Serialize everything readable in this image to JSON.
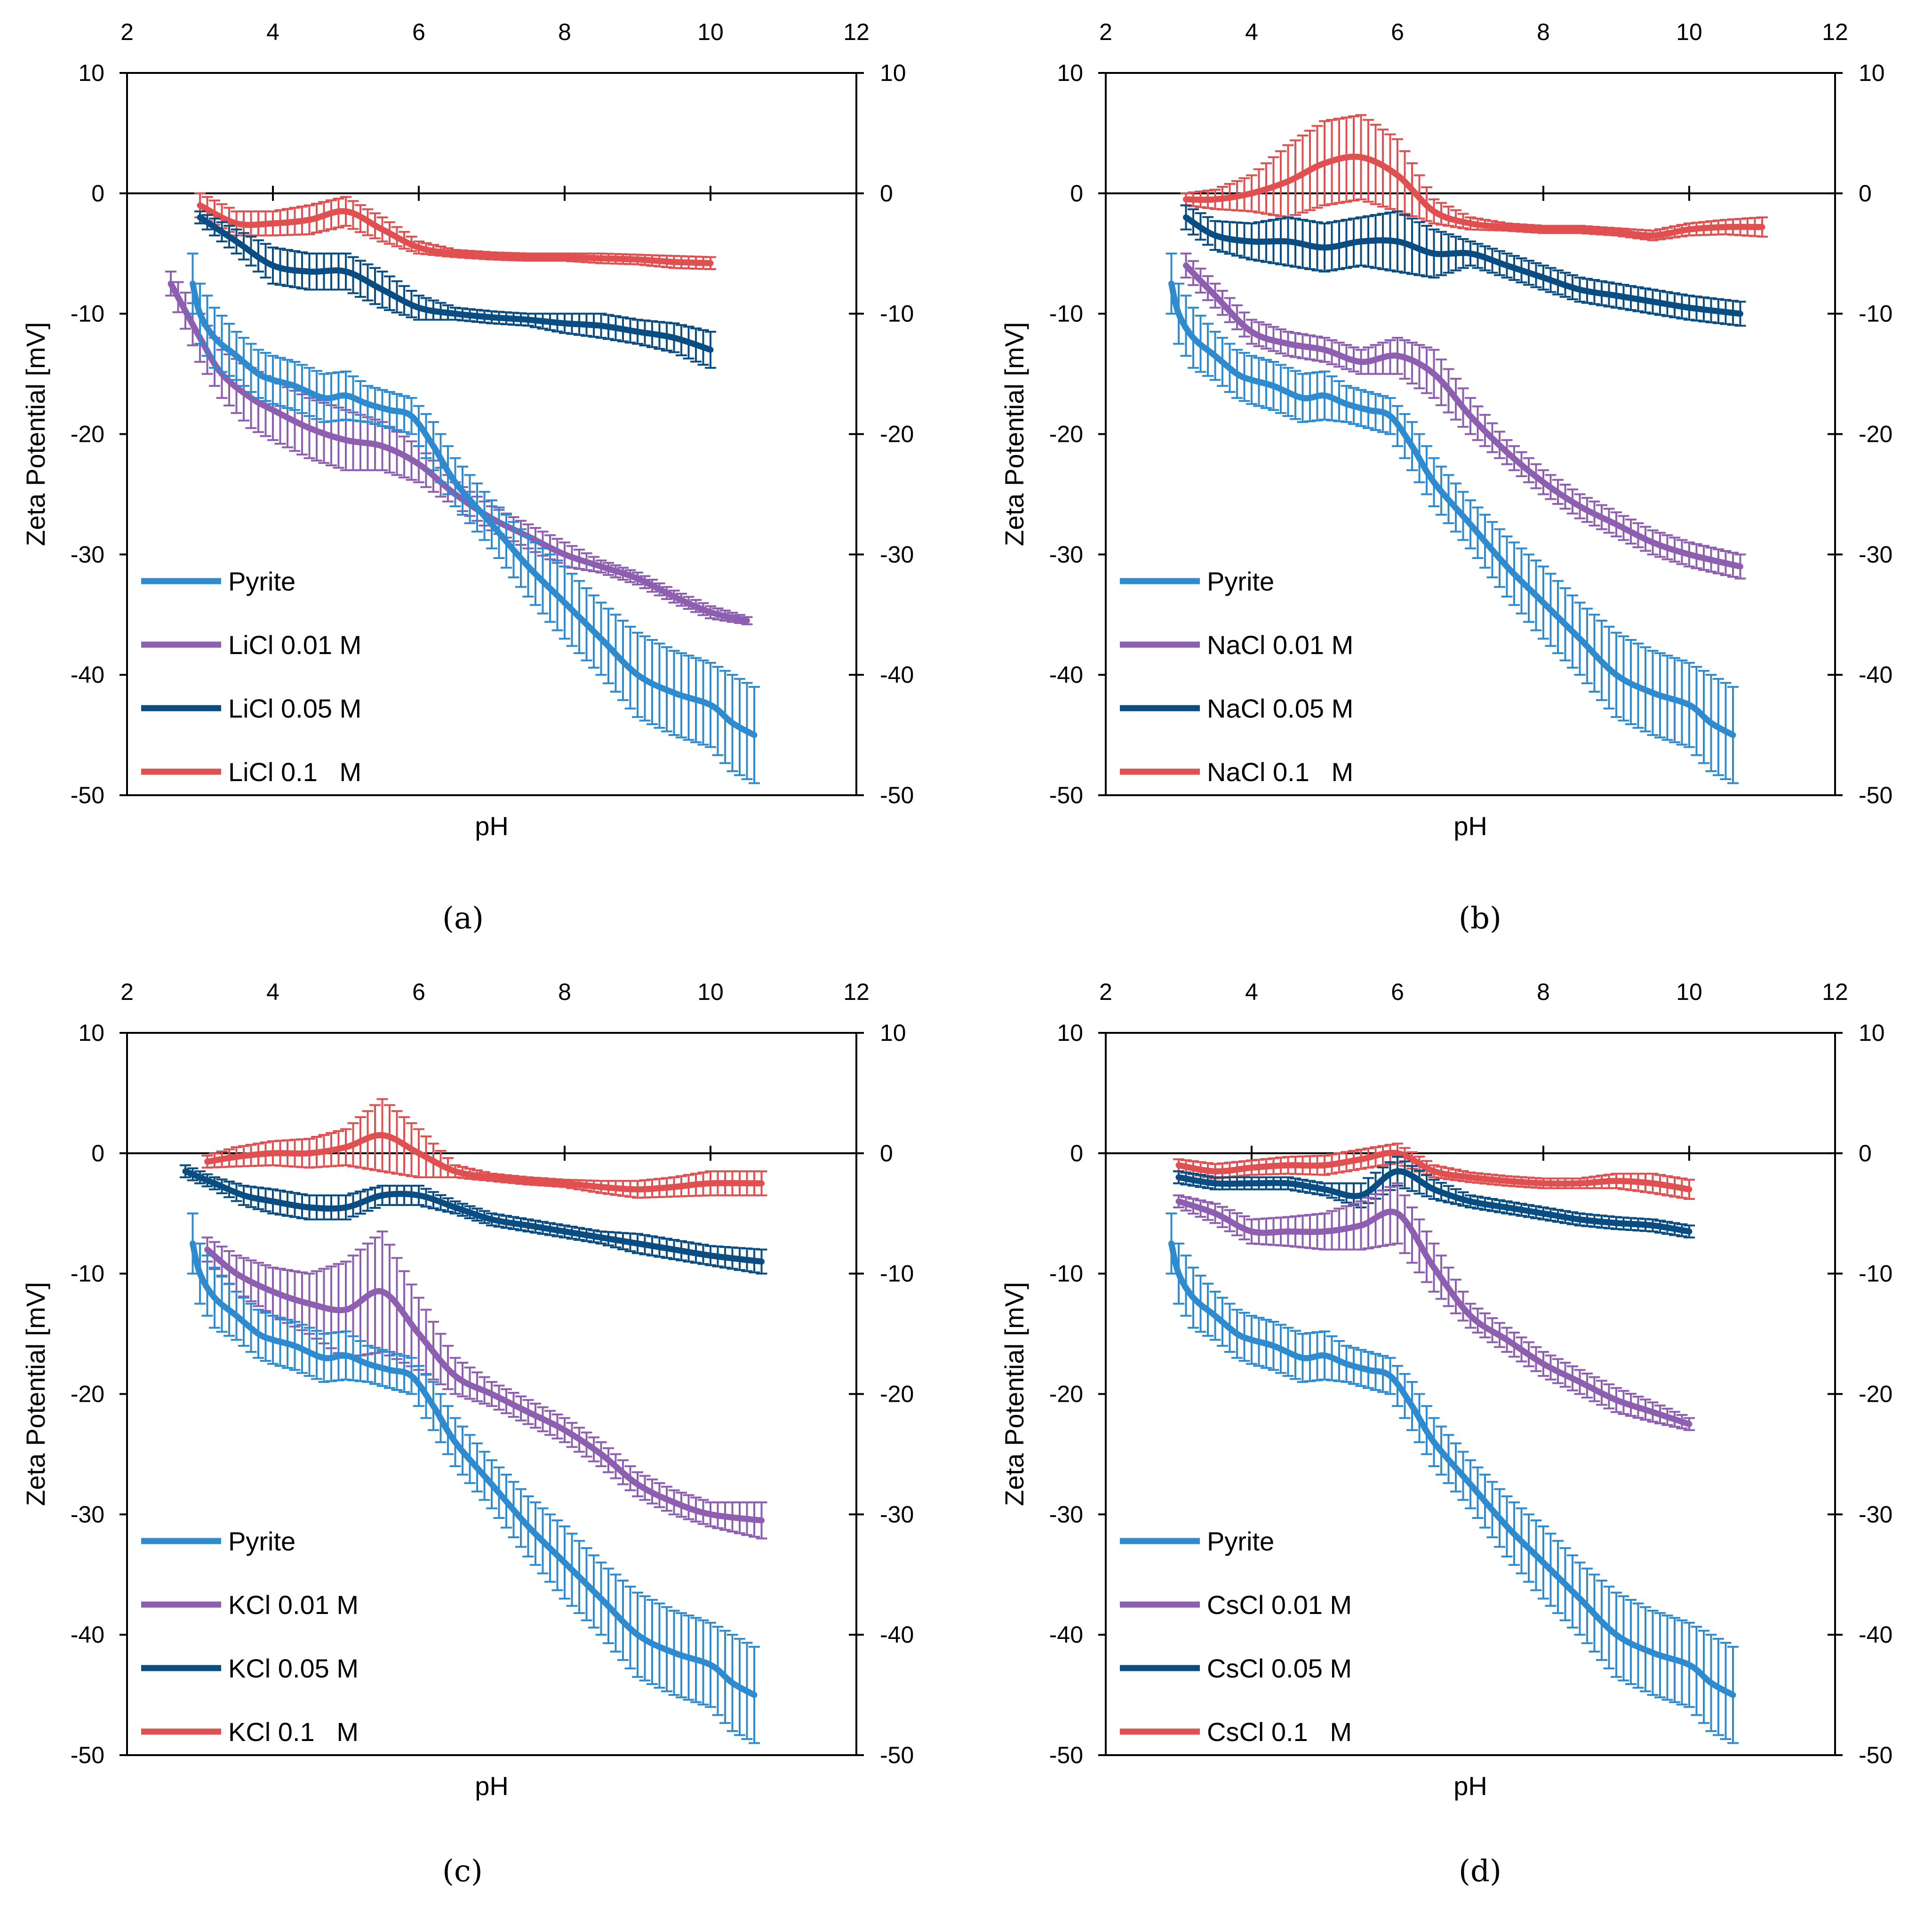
{
  "colors": {
    "pyrite": "#2e8bcf",
    "c001": "#8e5fb0",
    "c005": "#0a4d83",
    "c01": "#e05050"
  },
  "chart_data": [
    {
      "type": "line",
      "panel": "a",
      "caption": "(a)",
      "xlabel": "pH",
      "ylabel": "Zeta Potential [mV]",
      "xlim": [
        2,
        12
      ],
      "ylim": [
        -50,
        10
      ],
      "xticks": [
        "2",
        "4",
        "6",
        "8",
        "10",
        "12"
      ],
      "yticks": [
        "10",
        "0",
        "-10",
        "-20",
        "-30",
        "-40",
        "-50"
      ],
      "legend": [
        "Pyrite",
        "LiCl 0.01 M",
        "LiCl 0.05 M",
        "LiCl 0.1   M"
      ],
      "series": [
        {
          "name": "Pyrite",
          "color": "pyrite",
          "errorbars": true,
          "x": [
            2.9,
            3,
            3.2,
            3.5,
            3.8,
            4,
            4.3,
            4.7,
            5,
            5.3,
            5.6,
            5.9,
            6.2,
            6.5,
            7,
            7.5,
            8,
            8.5,
            9,
            9.5,
            10,
            10.3,
            10.6
          ],
          "y": [
            -7.5,
            -10,
            -12,
            -13.5,
            -15,
            -15.5,
            -16,
            -17,
            -16.8,
            -17.5,
            -18,
            -18.5,
            -21,
            -24,
            -27.5,
            -31,
            -34,
            -37,
            -40,
            -41.5,
            -42.5,
            -44,
            -45
          ],
          "err": [
            2.5,
            2.5,
            2.5,
            2,
            2,
            2,
            2,
            2,
            2,
            1.5,
            1.5,
            1.5,
            2,
            2,
            2,
            2.5,
            3,
            3,
            3.5,
            3.5,
            3.5,
            4,
            4
          ]
        },
        {
          "name": "LiCl 0.01 M",
          "color": "c001",
          "errorbars": true,
          "x": [
            2.6,
            3,
            3.3,
            3.7,
            4,
            4.5,
            5,
            5.5,
            6,
            6.5,
            7,
            7.5,
            8,
            8.5,
            9,
            9.5,
            10,
            10.5
          ],
          "y": [
            -7.5,
            -12,
            -15,
            -17,
            -18,
            -19.5,
            -20.5,
            -21,
            -22.5,
            -25,
            -27,
            -28.5,
            -30,
            -31,
            -32,
            -33.5,
            -34.8,
            -35.5
          ],
          "err": [
            1,
            2,
            2,
            2.5,
            2.5,
            2.5,
            2.5,
            2,
            1.5,
            1,
            1,
            1,
            1,
            0.5,
            0.5,
            0.5,
            0.5,
            0.3
          ]
        },
        {
          "name": "LiCl 0.05 M",
          "color": "c005",
          "errorbars": true,
          "x": [
            3,
            3.5,
            4,
            4.5,
            5,
            5.5,
            6,
            6.5,
            7,
            7.5,
            8,
            8.5,
            9,
            9.5,
            10
          ],
          "y": [
            -2,
            -4,
            -6,
            -6.5,
            -6.5,
            -8,
            -9.5,
            -10,
            -10.3,
            -10.5,
            -10.8,
            -11,
            -11.5,
            -12,
            -13
          ],
          "err": [
            0.5,
            1,
            1.5,
            1.5,
            1.5,
            1.5,
            1,
            0.5,
            0.5,
            0.5,
            0.8,
            1,
            1,
            1.2,
            1.5
          ]
        },
        {
          "name": "LiCl 0.1   M",
          "color": "c01",
          "errorbars": true,
          "x": [
            3,
            3.5,
            4,
            4.5,
            5,
            5.5,
            6,
            6.5,
            7,
            7.5,
            8,
            8.5,
            9,
            9.5,
            10
          ],
          "y": [
            -1,
            -2.5,
            -2.5,
            -2.2,
            -1.5,
            -3,
            -4.5,
            -5,
            -5.2,
            -5.3,
            -5.3,
            -5.4,
            -5.5,
            -5.7,
            -5.8
          ],
          "err": [
            1,
            1,
            1,
            1.2,
            1.2,
            1,
            0.5,
            0.3,
            0.3,
            0.3,
            0.3,
            0.4,
            0.4,
            0.5,
            0.5
          ]
        }
      ]
    },
    {
      "type": "line",
      "panel": "b",
      "caption": "(b)",
      "xlabel": "pH",
      "ylabel": "Zeta Potential [mV]",
      "xlim": [
        2,
        12
      ],
      "ylim": [
        -50,
        10
      ],
      "xticks": [
        "2",
        "4",
        "6",
        "8",
        "10",
        "12"
      ],
      "yticks": [
        "10",
        "0",
        "-10",
        "-20",
        "-30",
        "-40",
        "-50"
      ],
      "legend": [
        "Pyrite",
        "NaCl 0.01 M",
        "NaCl 0.05 M",
        "NaCl 0.1   M"
      ],
      "series": [
        {
          "name": "Pyrite",
          "color": "pyrite",
          "errorbars": true,
          "x": [
            2.9,
            3,
            3.2,
            3.5,
            3.8,
            4,
            4.3,
            4.7,
            5,
            5.3,
            5.6,
            5.9,
            6.2,
            6.5,
            7,
            7.5,
            8,
            8.5,
            9,
            9.5,
            10,
            10.3,
            10.6
          ],
          "y": [
            -7.5,
            -10,
            -12,
            -13.5,
            -15,
            -15.5,
            -16,
            -17,
            -16.8,
            -17.5,
            -18,
            -18.5,
            -21,
            -24,
            -27.5,
            -31,
            -34,
            -37,
            -40,
            -41.5,
            -42.5,
            -44,
            -45
          ],
          "err": [
            2.5,
            2.5,
            2.5,
            2,
            2,
            2,
            2,
            2,
            2,
            1.5,
            1.5,
            1.5,
            2,
            2,
            2,
            2.5,
            3,
            3,
            3.5,
            3.5,
            3.5,
            4,
            4
          ]
        },
        {
          "name": "NaCl 0.01 M",
          "color": "c001",
          "errorbars": true,
          "x": [
            3.1,
            3.5,
            4,
            4.5,
            5,
            5.5,
            6,
            6.5,
            7,
            7.5,
            8,
            8.5,
            9,
            9.5,
            10,
            10.7
          ],
          "y": [
            -6,
            -8.5,
            -11.5,
            -12.5,
            -13,
            -14,
            -13.5,
            -15,
            -18.5,
            -21.5,
            -24,
            -26,
            -27.5,
            -29,
            -30,
            -31
          ],
          "err": [
            1,
            1,
            1,
            1,
            1,
            1,
            1.5,
            2,
            1.5,
            1,
            1,
            1,
            1,
            1,
            1,
            1
          ]
        },
        {
          "name": "NaCl 0.05 M",
          "color": "c005",
          "errorbars": true,
          "x": [
            3.1,
            3.5,
            4,
            4.5,
            5,
            5.5,
            6,
            6.5,
            7,
            7.5,
            8,
            8.5,
            9,
            9.5,
            10,
            10.7
          ],
          "y": [
            -2,
            -3.5,
            -4,
            -4,
            -4.5,
            -4,
            -4,
            -5,
            -5,
            -6,
            -7,
            -8,
            -8.5,
            -9,
            -9.5,
            -10
          ],
          "err": [
            1,
            1.2,
            1.5,
            2,
            2,
            2,
            2.5,
            2,
            1,
            1,
            1,
            1,
            1,
            1,
            1,
            1
          ]
        },
        {
          "name": "NaCl 0.1   M",
          "color": "c01",
          "errorbars": true,
          "x": [
            3.1,
            3.5,
            4,
            4.5,
            5,
            5.5,
            6,
            6.5,
            7,
            7.5,
            8,
            8.5,
            9,
            9.5,
            10,
            10.5,
            11
          ],
          "y": [
            -0.5,
            -0.5,
            0,
            1,
            2.5,
            3,
            1.5,
            -1.5,
            -2.5,
            -2.8,
            -3,
            -3,
            -3.2,
            -3.5,
            -3,
            -2.8,
            -2.8
          ],
          "err": [
            0.5,
            0.8,
            1.5,
            3,
            3.5,
            3.5,
            3,
            1,
            0.5,
            0.3,
            0.3,
            0.3,
            0.3,
            0.4,
            0.5,
            0.6,
            0.8
          ]
        }
      ]
    },
    {
      "type": "line",
      "panel": "c",
      "caption": "(c)",
      "xlabel": "pH",
      "ylabel": "Zeta Potential [mV]",
      "xlim": [
        2,
        12
      ],
      "ylim": [
        -50,
        10
      ],
      "xticks": [
        "2",
        "4",
        "6",
        "8",
        "10",
        "12"
      ],
      "yticks": [
        "10",
        "0",
        "-10",
        "-20",
        "-30",
        "-40",
        "-50"
      ],
      "legend": [
        "Pyrite",
        "KCl 0.01 M",
        "KCl 0.05 M",
        "KCl 0.1   M"
      ],
      "series": [
        {
          "name": "Pyrite",
          "color": "pyrite",
          "errorbars": true,
          "x": [
            2.9,
            3,
            3.2,
            3.5,
            3.8,
            4,
            4.3,
            4.7,
            5,
            5.3,
            5.6,
            5.9,
            6.2,
            6.5,
            7,
            7.5,
            8,
            8.5,
            9,
            9.5,
            10,
            10.3,
            10.6
          ],
          "y": [
            -7.5,
            -10,
            -12,
            -13.5,
            -15,
            -15.5,
            -16,
            -17,
            -16.8,
            -17.5,
            -18,
            -18.5,
            -21,
            -24,
            -27.5,
            -31,
            -34,
            -37,
            -40,
            -41.5,
            -42.5,
            -44,
            -45
          ],
          "err": [
            2.5,
            2.5,
            2.5,
            2,
            2,
            2,
            2,
            2,
            2,
            1.5,
            1.5,
            1.5,
            2,
            2,
            2,
            2.5,
            3,
            3,
            3.5,
            3.5,
            3.5,
            4,
            4
          ]
        },
        {
          "name": "KCl 0.01 M",
          "color": "c001",
          "errorbars": true,
          "x": [
            3.1,
            3.5,
            4,
            4.5,
            5,
            5.5,
            6,
            6.5,
            7,
            7.5,
            8,
            8.5,
            9,
            9.5,
            10,
            10.7
          ],
          "y": [
            -8,
            -10,
            -11.5,
            -12.5,
            -13,
            -11.5,
            -15,
            -18.5,
            -20,
            -21.5,
            -23,
            -25,
            -27.5,
            -29,
            -30,
            -30.5
          ],
          "err": [
            1,
            1.5,
            2,
            2.5,
            4,
            5,
            3,
            1.5,
            1,
            1,
            1,
            1,
            1,
            1,
            1,
            1.5
          ]
        },
        {
          "name": "KCl 0.05 M",
          "color": "c005",
          "errorbars": true,
          "x": [
            2.8,
            3.2,
            3.6,
            4,
            4.5,
            5,
            5.5,
            6,
            6.5,
            7,
            7.5,
            8,
            8.5,
            9,
            9.5,
            10,
            10.7
          ],
          "y": [
            -1.5,
            -2.5,
            -3.5,
            -4,
            -4.5,
            -4.5,
            -3.5,
            -3.5,
            -4.5,
            -5.5,
            -6,
            -6.5,
            -7,
            -7.5,
            -8,
            -8.5,
            -9
          ],
          "err": [
            0.5,
            0.5,
            0.8,
            1,
            1,
            1,
            0.8,
            0.8,
            0.5,
            0.5,
            0.5,
            0.5,
            0.5,
            0.8,
            0.8,
            0.8,
            1
          ]
        },
        {
          "name": "KCl 0.1   M",
          "color": "c01",
          "errorbars": true,
          "x": [
            3.1,
            3.5,
            4,
            4.5,
            5,
            5.5,
            6,
            6.5,
            7,
            7.5,
            8,
            8.5,
            9,
            9.5,
            10,
            10.7
          ],
          "y": [
            -0.7,
            -0.3,
            0,
            0,
            0.5,
            1.5,
            0,
            -1.5,
            -2,
            -2.3,
            -2.5,
            -2.8,
            -3,
            -2.8,
            -2.5,
            -2.5
          ],
          "err": [
            0.5,
            0.8,
            1,
            1.2,
            1.5,
            3,
            2,
            0.5,
            0.3,
            0.3,
            0.3,
            0.5,
            0.7,
            0.8,
            1,
            1
          ]
        }
      ]
    },
    {
      "type": "line",
      "panel": "d",
      "caption": "(d)",
      "xlabel": "pH",
      "ylabel": "Zeta Potential [mV]",
      "xlim": [
        2,
        12
      ],
      "ylim": [
        -50,
        10
      ],
      "xticks": [
        "2",
        "4",
        "6",
        "8",
        "10",
        "12"
      ],
      "yticks": [
        "10",
        "0",
        "-10",
        "-20",
        "-30",
        "-40",
        "-50"
      ],
      "legend": [
        "Pyrite",
        "CsCl 0.01 M",
        "CsCl 0.05 M",
        "CsCl 0.1   M"
      ],
      "series": [
        {
          "name": "Pyrite",
          "color": "pyrite",
          "errorbars": true,
          "x": [
            2.9,
            3,
            3.2,
            3.5,
            3.8,
            4,
            4.3,
            4.7,
            5,
            5.3,
            5.6,
            5.9,
            6.2,
            6.5,
            7,
            7.5,
            8,
            8.5,
            9,
            9.5,
            10,
            10.3,
            10.6
          ],
          "y": [
            -7.5,
            -10,
            -12,
            -13.5,
            -15,
            -15.5,
            -16,
            -17,
            -16.8,
            -17.5,
            -18,
            -18.5,
            -21,
            -24,
            -27.5,
            -31,
            -34,
            -37,
            -40,
            -41.5,
            -42.5,
            -44,
            -45
          ],
          "err": [
            2.5,
            2.5,
            2.5,
            2,
            2,
            2,
            2,
            2,
            2,
            1.5,
            1.5,
            1.5,
            2,
            2,
            2,
            2.5,
            3,
            3,
            3.5,
            3.5,
            3.5,
            4,
            4
          ]
        },
        {
          "name": "CsCl 0.01 M",
          "color": "c001",
          "errorbars": true,
          "x": [
            3,
            3.5,
            4,
            4.5,
            5,
            5.5,
            6,
            6.5,
            7,
            7.5,
            8,
            8.5,
            9,
            9.5,
            10
          ],
          "y": [
            -4,
            -5,
            -6.5,
            -6.5,
            -6.5,
            -6,
            -5,
            -9.5,
            -13.5,
            -15.5,
            -17.5,
            -19,
            -20.5,
            -21.5,
            -22.5
          ],
          "err": [
            0.5,
            0.8,
            1,
            1.2,
            1.5,
            2,
            2.5,
            2,
            1,
            1,
            1,
            1,
            1,
            0.8,
            0.5
          ]
        },
        {
          "name": "CsCl 0.05 M",
          "color": "c005",
          "errorbars": true,
          "x": [
            3,
            3.5,
            4,
            4.5,
            5,
            5.5,
            6,
            6.5,
            7,
            7.5,
            8,
            8.5,
            9,
            9.5,
            10
          ],
          "y": [
            -2,
            -2.5,
            -2.5,
            -2.5,
            -3,
            -3.5,
            -1.5,
            -3,
            -4,
            -4.5,
            -5,
            -5.5,
            -5.8,
            -6,
            -6.5
          ],
          "err": [
            0.5,
            0.5,
            0.5,
            0.5,
            0.5,
            1,
            1.2,
            0.8,
            0.5,
            0.5,
            0.5,
            0.5,
            0.5,
            0.5,
            0.5
          ]
        },
        {
          "name": "CsCl 0.1   M",
          "color": "c01",
          "errorbars": true,
          "x": [
            3,
            3.5,
            4,
            4.5,
            5,
            5.5,
            6,
            6.5,
            7,
            7.5,
            8,
            8.5,
            9,
            9.5,
            10
          ],
          "y": [
            -1,
            -1.5,
            -1.2,
            -1,
            -1,
            -0.5,
            0,
            -1.5,
            -2,
            -2.3,
            -2.5,
            -2.5,
            -2.3,
            -2.5,
            -3
          ],
          "err": [
            0.5,
            0.6,
            0.6,
            0.7,
            0.8,
            0.8,
            0.8,
            0.5,
            0.4,
            0.4,
            0.4,
            0.4,
            0.6,
            0.8,
            0.8
          ]
        }
      ]
    }
  ]
}
